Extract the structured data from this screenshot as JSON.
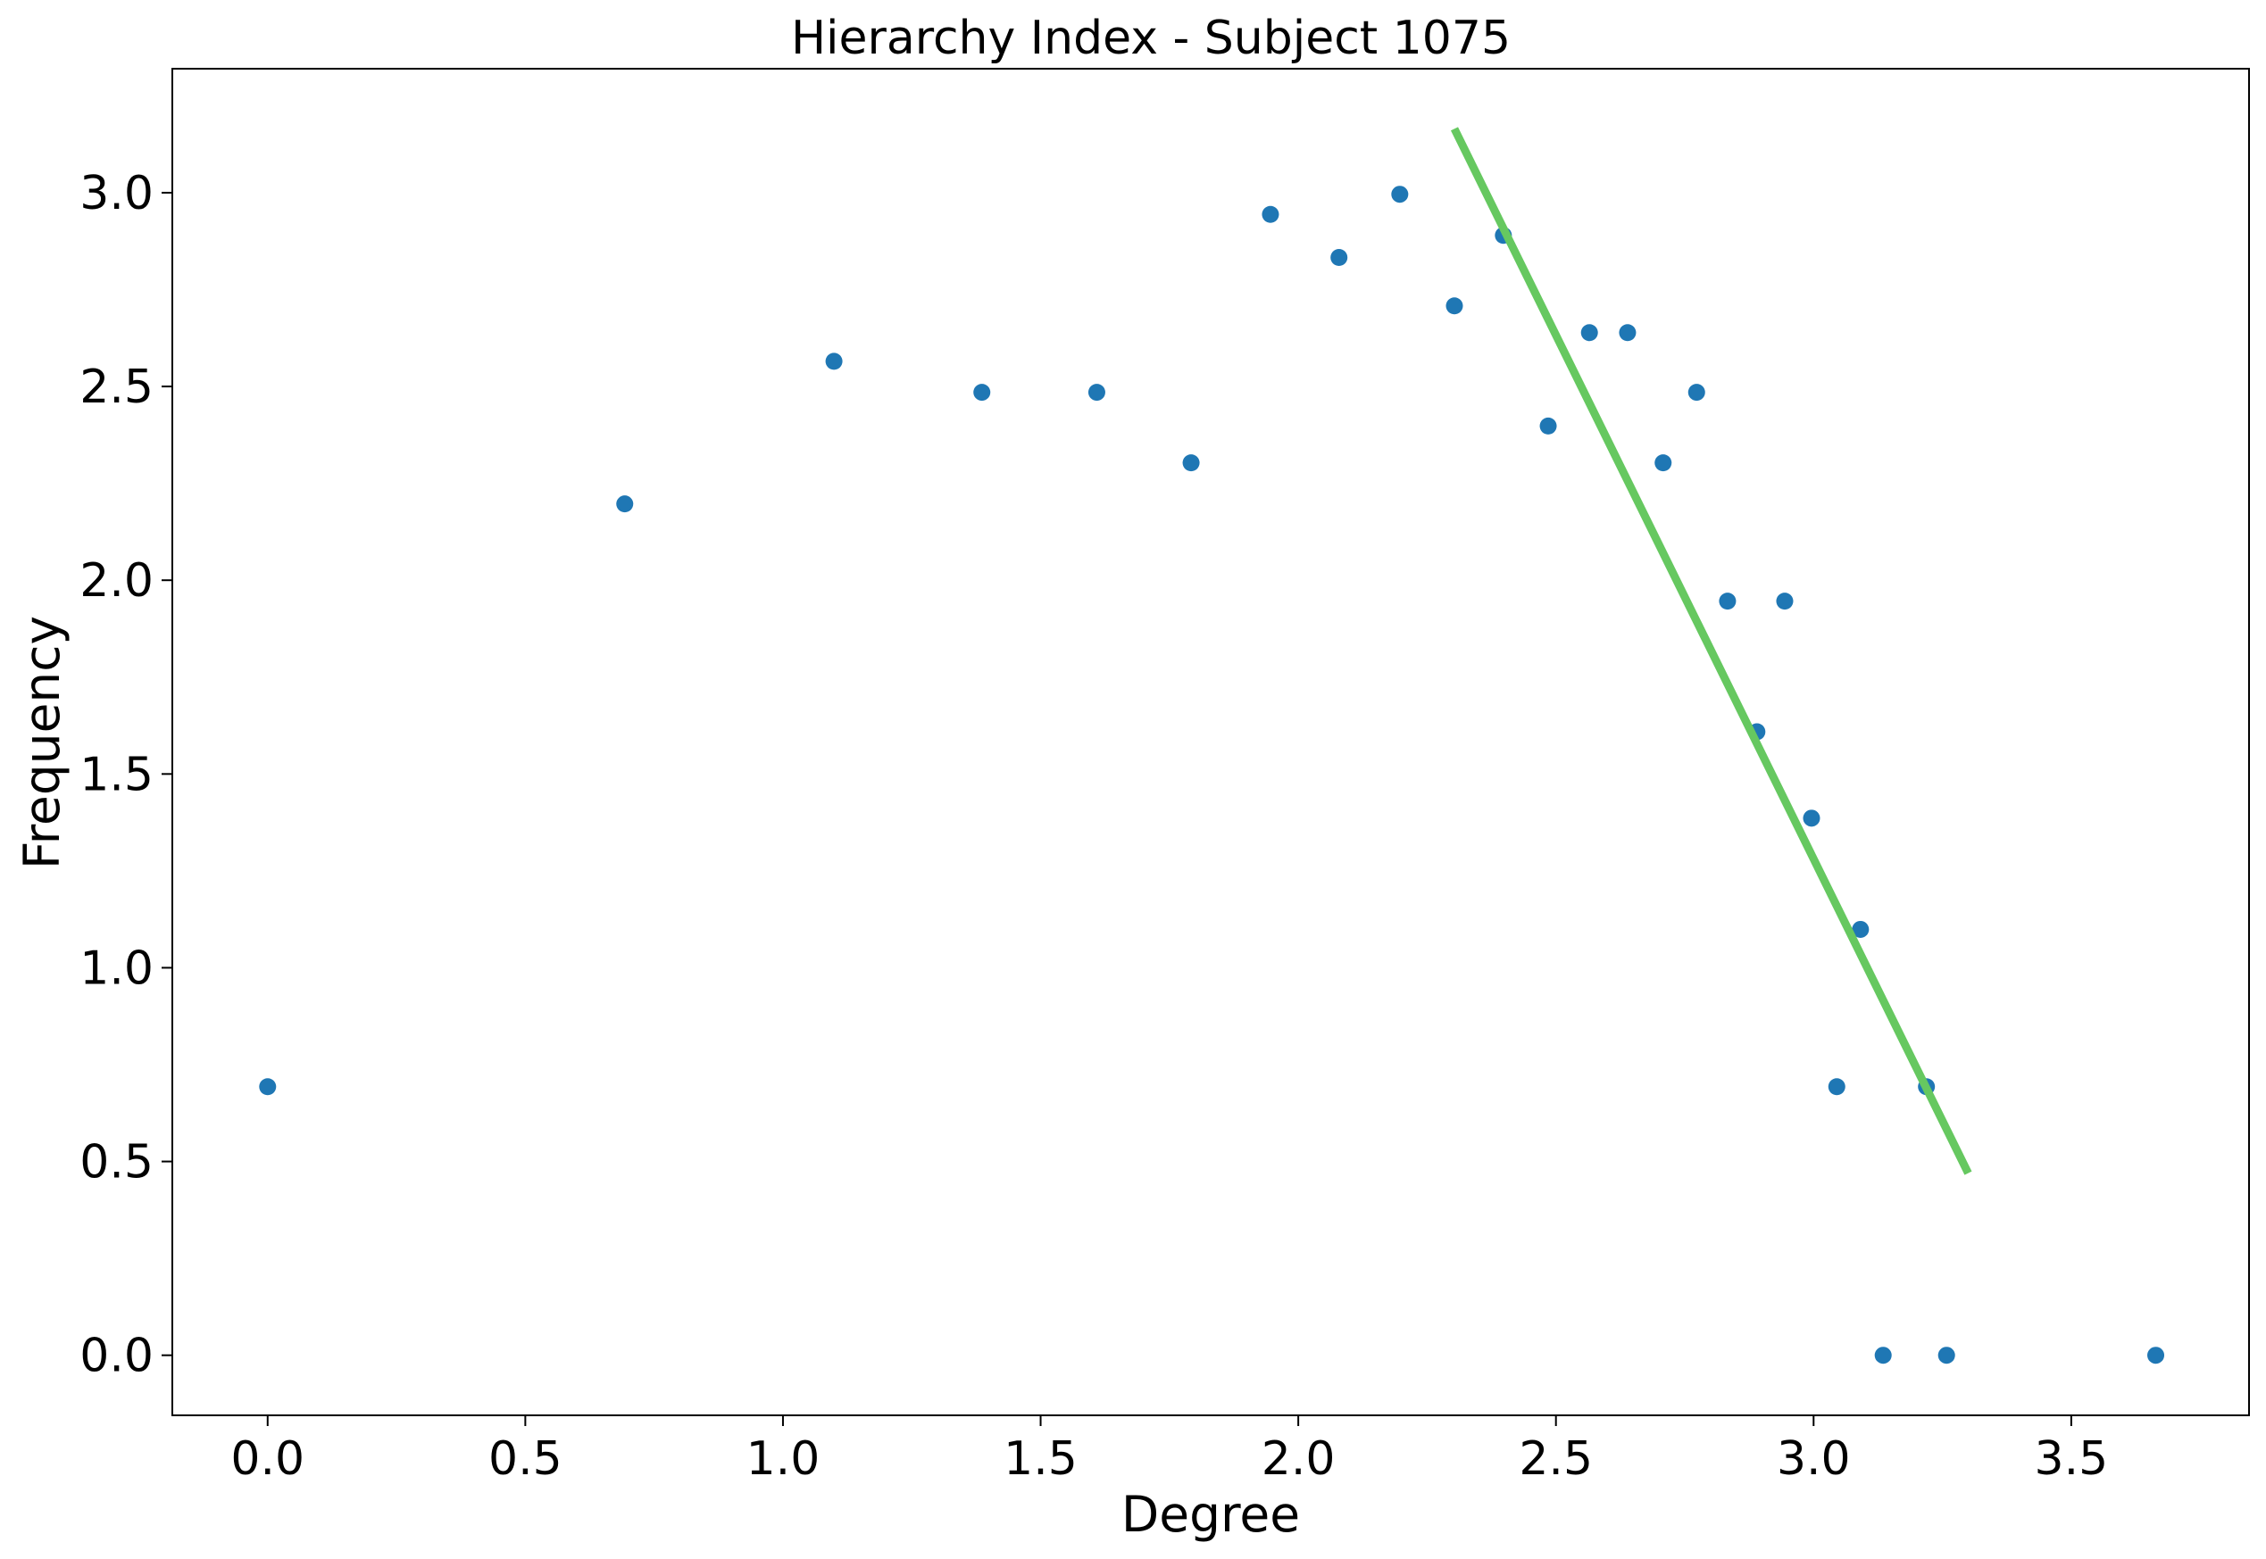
{
  "chart_data": {
    "type": "scatter",
    "title": "Hierarchy Index - Subject 1075",
    "xlabel": "Degree",
    "ylabel": "Frequency",
    "xlim": [
      -0.185,
      3.845
    ],
    "ylim": [
      -0.155,
      3.32
    ],
    "xticks": [
      0.0,
      0.5,
      1.0,
      1.5,
      2.0,
      2.5,
      3.0,
      3.5
    ],
    "xtick_labels": [
      "0.0",
      "0.5",
      "1.0",
      "1.5",
      "2.0",
      "2.5",
      "3.0",
      "3.5"
    ],
    "yticks": [
      0.0,
      0.5,
      1.0,
      1.5,
      2.0,
      2.5,
      3.0
    ],
    "ytick_labels": [
      "0.0",
      "0.5",
      "1.0",
      "1.5",
      "2.0",
      "2.5",
      "3.0"
    ],
    "grid": false,
    "legend": "none",
    "series": [
      {
        "type": "scatter",
        "color": "#1f77b4",
        "x": [
          0.0,
          0.693,
          1.099,
          1.386,
          1.609,
          1.792,
          1.946,
          2.079,
          2.197,
          2.303,
          2.398,
          2.485,
          2.565,
          2.639,
          2.708,
          2.773,
          2.833,
          2.89,
          2.944,
          2.996,
          3.045,
          3.091,
          3.135,
          3.219,
          3.258,
          3.664
        ],
        "y": [
          0.693,
          2.197,
          2.565,
          2.485,
          2.485,
          2.303,
          2.944,
          2.833,
          2.996,
          2.708,
          2.89,
          2.398,
          2.639,
          2.639,
          2.303,
          2.485,
          1.946,
          1.609,
          1.946,
          1.386,
          0.693,
          1.099,
          0.0,
          0.693,
          0.0,
          0.0
        ]
      },
      {
        "type": "line",
        "color": "#66c860",
        "x": [
          2.303,
          3.3
        ],
        "y": [
          3.165,
          0.47
        ]
      }
    ]
  }
}
